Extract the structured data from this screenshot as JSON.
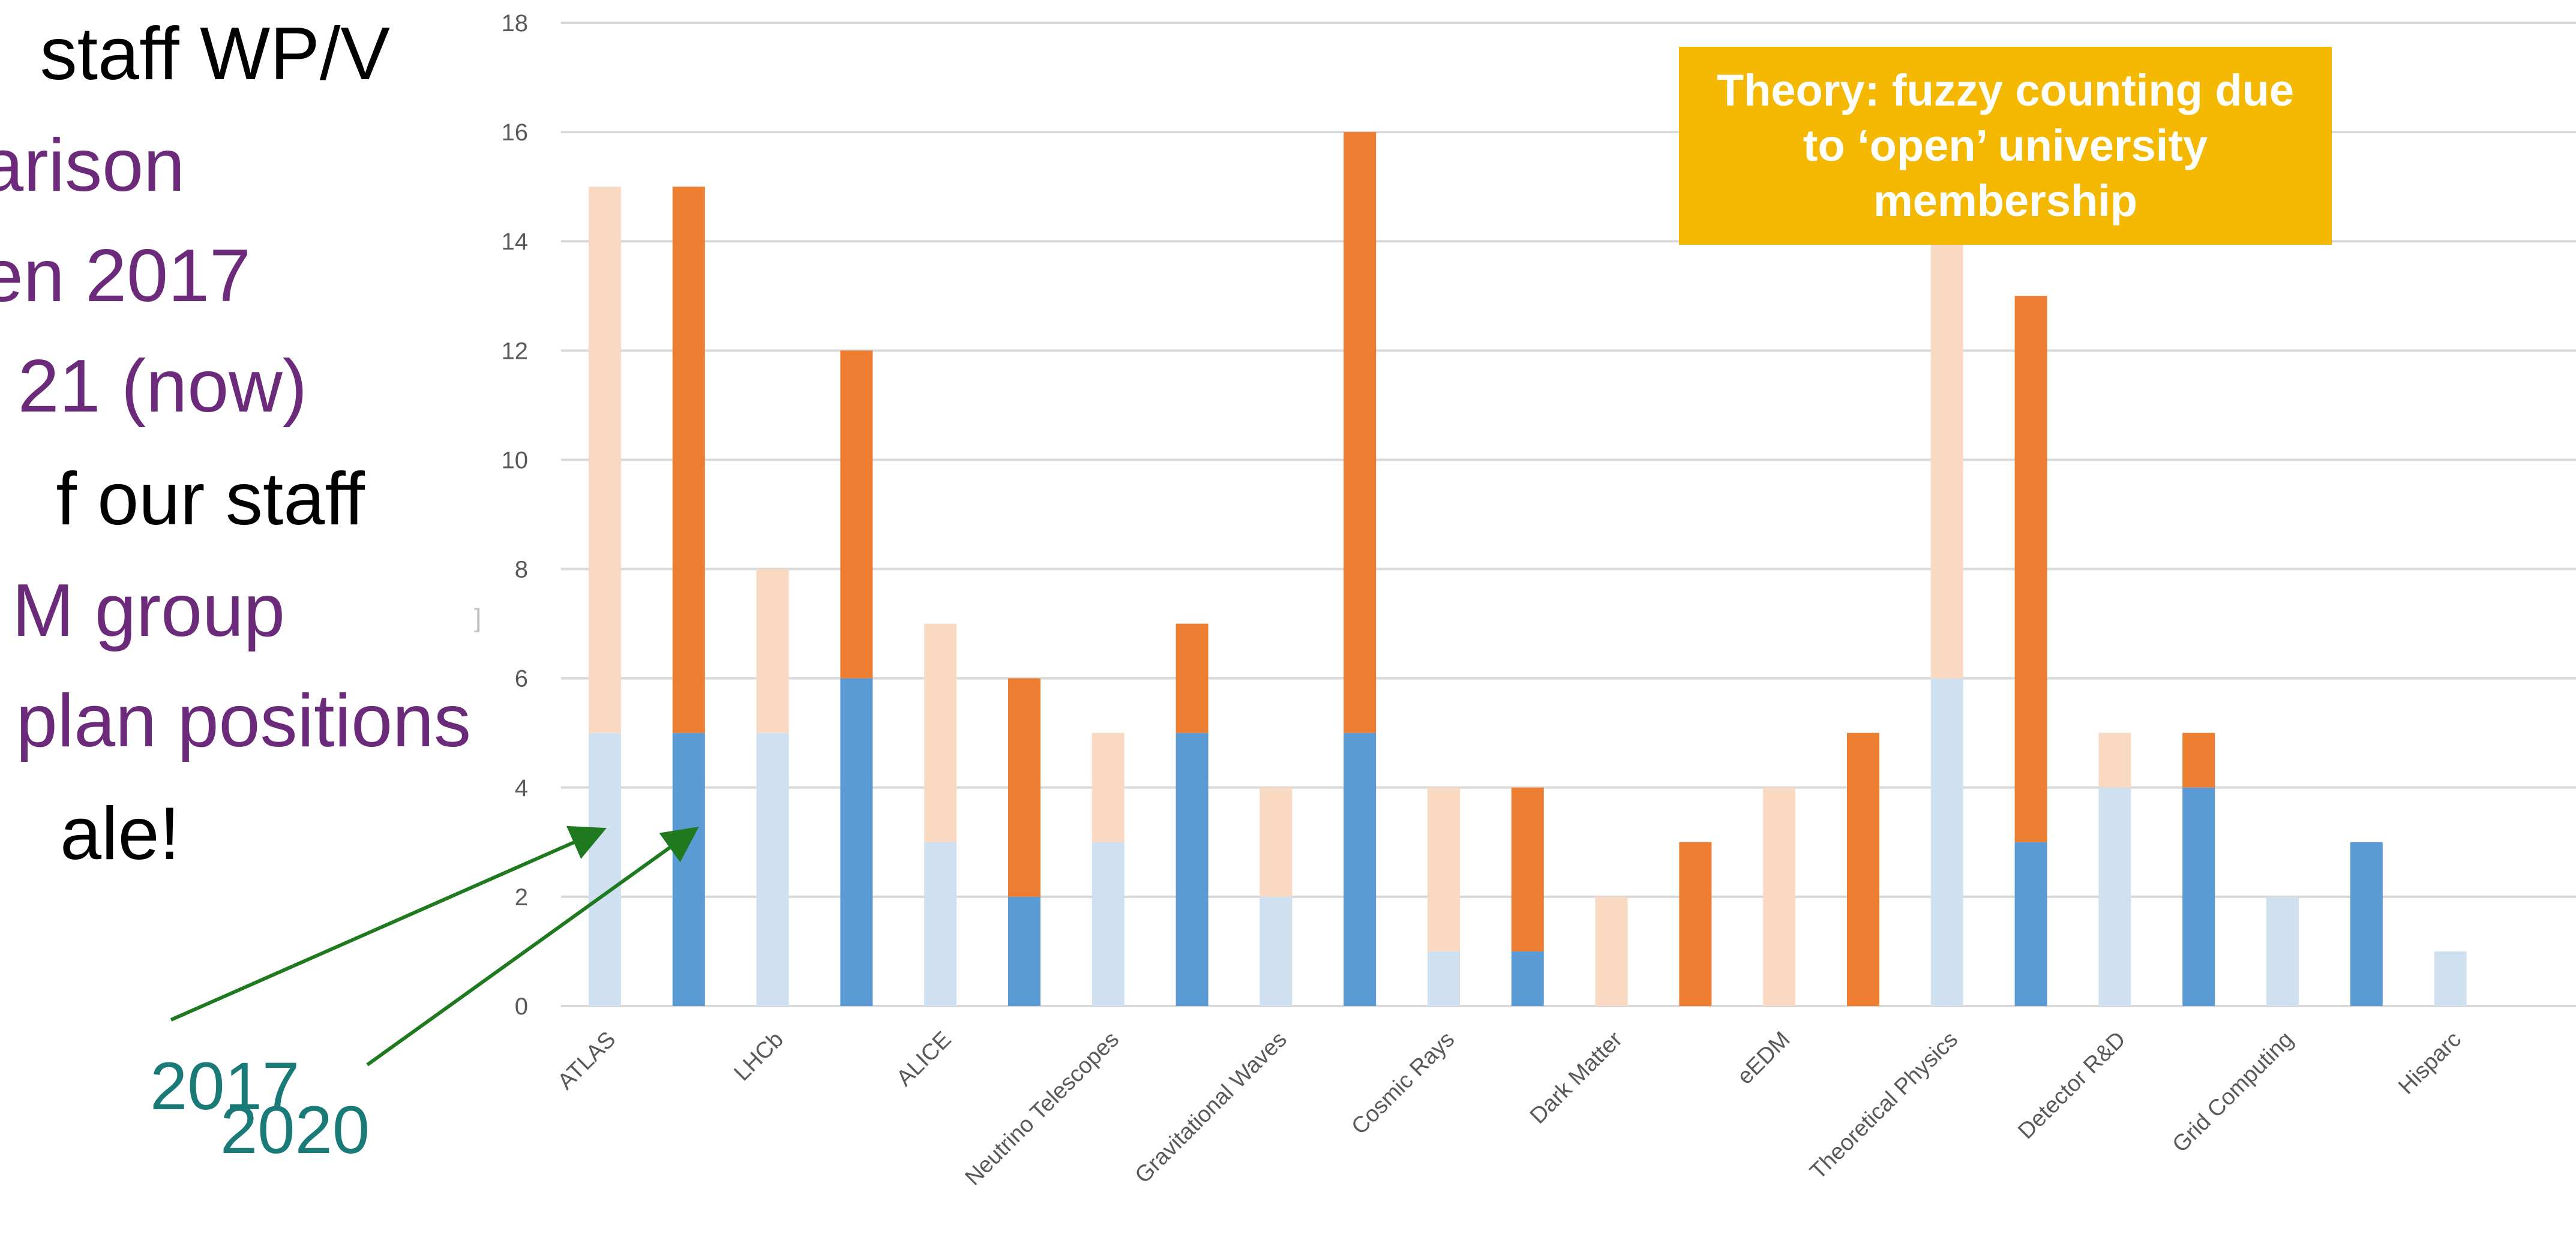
{
  "bullets": [
    {
      "text": "staff WP/V",
      "style": "main"
    },
    {
      "text": "arison",
      "style": "sub"
    },
    {
      "text": "en 2017",
      "style": "sub"
    },
    {
      "text": "21 (now)",
      "style": "sub"
    },
    {
      "text": "f our staff",
      "style": "main"
    },
    {
      "text": "M group",
      "style": "sub"
    },
    {
      "text": "plan positions",
      "style": "sub"
    },
    {
      "text": "ale!",
      "style": "main"
    }
  ],
  "annotations": {
    "year_2017": "2017",
    "year_2020": "2020",
    "year_color": "#1a7a78",
    "arrow_color": "#1f7a1f",
    "callout_text": "Theory: fuzzy counting due to ‘open’ university membership",
    "callout_color": "#f5b800"
  },
  "chart_data": {
    "type": "bar",
    "stacked": true,
    "categories": [
      "ATLAS",
      "LHCb",
      "ALICE",
      "Neutrino Telescopes",
      "Gravitational Waves",
      "Cosmic Rays",
      "Dark Matter",
      "eEDM",
      "Theoretical Physics",
      "Detector R&D",
      "Grid Computing",
      "Hisparc"
    ],
    "ylim": [
      0,
      18
    ],
    "yticks": [
      0,
      2,
      4,
      6,
      8,
      10,
      12,
      14,
      16,
      18
    ],
    "grid": true,
    "title": "",
    "xlabel": "",
    "ylabel": "",
    "groups": [
      {
        "label": "2017",
        "series": [
          {
            "values": [
              5,
              5,
              3,
              3,
              2,
              1,
              0,
              0,
              6,
              4,
              2,
              1
            ],
            "color": "#cfe0f1"
          },
          {
            "values": [
              10,
              3,
              4,
              2,
              2,
              3,
              2,
              4,
              8,
              1,
              0,
              0
            ],
            "color": "#fad9c3"
          }
        ]
      },
      {
        "label": "2020",
        "series": [
          {
            "values": [
              5,
              6,
              2,
              5,
              5,
              1,
              0,
              0,
              3,
              4,
              3,
              0
            ],
            "color": "#5b9bd5"
          },
          {
            "values": [
              10,
              6,
              4,
              2,
              11,
              3,
              3,
              5,
              10,
              1,
              0,
              0
            ],
            "color": "#ed7d31"
          }
        ]
      }
    ]
  }
}
